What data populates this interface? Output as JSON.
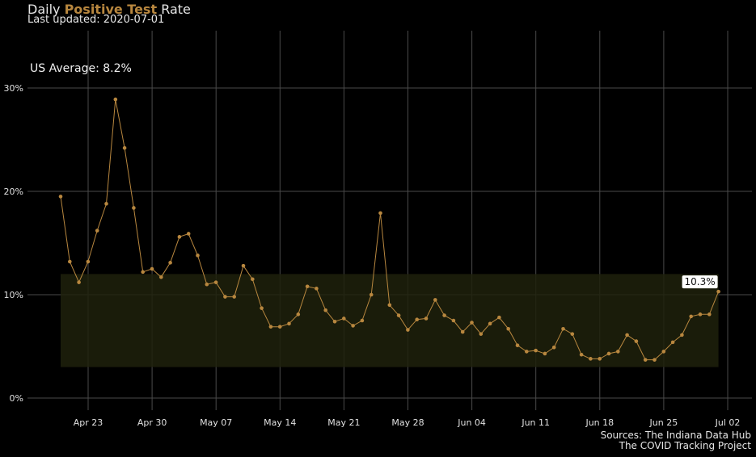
{
  "title": {
    "prefix": "Daily ",
    "highlight": "Positive Test",
    "suffix": " Rate"
  },
  "subtitle": "Last updated: 2020-07-01",
  "annotation": "US Average: 8.2%",
  "sources": [
    "Sources: The Indiana Data Hub",
    "The COVID Tracking Project"
  ],
  "colors": {
    "background": "#000000",
    "line": "#b8873f",
    "band": "#1f210c",
    "grid": "#4a4a4a",
    "label_bg": "#ffffff"
  },
  "chart_data": {
    "type": "line",
    "title": "Daily Positive Test Rate",
    "xlabel": "",
    "ylabel": "",
    "x_start": "2020-04-20",
    "x_end": "2020-06-30",
    "x_ticks": [
      "Apr 23",
      "Apr 30",
      "May 07",
      "May 14",
      "May 21",
      "May 28",
      "Jun 04",
      "Jun 11",
      "Jun 18",
      "Jun 25",
      "Jul 02"
    ],
    "y_ticks": [
      "0%",
      "10%",
      "20%",
      "30%"
    ],
    "ylim": [
      0,
      30
    ],
    "grid": true,
    "band": {
      "ymin": 3.0,
      "ymax": 12.0
    },
    "last_label": "10.3%",
    "series": [
      {
        "values": [
          19.5,
          13.2,
          11.2,
          13.2,
          16.2,
          18.8,
          28.9,
          24.2,
          18.4,
          12.2,
          12.5,
          11.7,
          13.1,
          15.6,
          15.9,
          13.8,
          11.0,
          11.2,
          9.8,
          9.8,
          12.8,
          11.5,
          8.7,
          6.9,
          6.9,
          7.2,
          8.1,
          10.8,
          10.6,
          8.5,
          7.4,
          7.7,
          7.0,
          7.5,
          10.0,
          17.9,
          9.0,
          8.0,
          6.6,
          7.6,
          7.7,
          9.5,
          8.0,
          7.5,
          6.4,
          7.3,
          6.2,
          7.2,
          7.8,
          6.7,
          5.1,
          4.5,
          4.6,
          4.3,
          4.9,
          6.7,
          6.2,
          4.2,
          3.8,
          3.8,
          4.3,
          4.5,
          6.1,
          5.5,
          3.7,
          3.7,
          4.5,
          5.4,
          6.1,
          7.9,
          8.1,
          8.1,
          10.3
        ]
      }
    ]
  }
}
